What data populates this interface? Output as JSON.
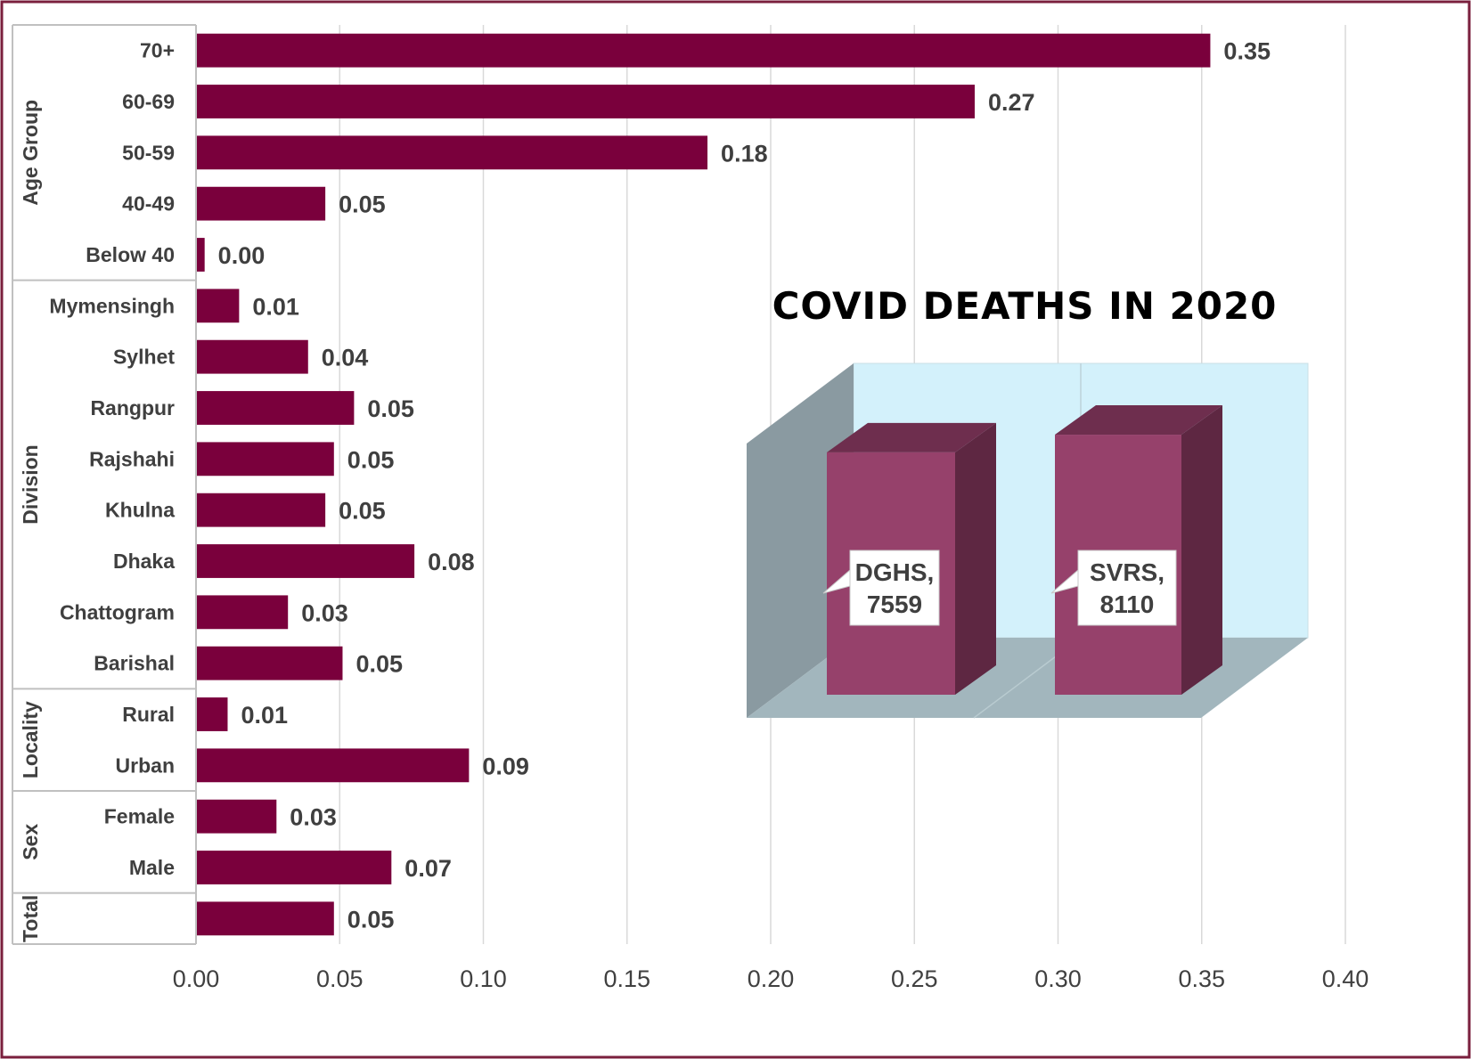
{
  "colors": {
    "bar": "#7a003c",
    "grid": "#d9d9d9",
    "frame": "#7a1f3d",
    "inset_back_wall": "#d3f1fb",
    "inset_side_wall": "#8a9aa1",
    "inset_floor": "#a2b6bd",
    "inset_box_front": "#96416b",
    "inset_box_top": "#6e2e4e",
    "inset_box_side": "#5e2742"
  },
  "chart_data": [
    {
      "type": "bar",
      "orientation": "horizontal",
      "xlim": [
        0,
        0.4
      ],
      "xticks": [
        "0.00",
        "0.05",
        "0.10",
        "0.15",
        "0.20",
        "0.25",
        "0.30",
        "0.35",
        "0.40"
      ],
      "grid": "vertical",
      "groups": [
        {
          "name": "Age Group",
          "categories": [
            "70+",
            "60-69",
            "50-59",
            "40-49",
            "Below 40"
          ],
          "values": [
            0.353,
            0.271,
            0.178,
            0.045,
            0.003
          ],
          "labels": [
            "0.35",
            "0.27",
            "0.18",
            "0.05",
            "0.00"
          ]
        },
        {
          "name": "Division",
          "categories": [
            "Mymensingh",
            "Sylhet",
            "Rangpur",
            "Rajshahi",
            "Khulna",
            "Dhaka",
            "Chattogram",
            "Barishal"
          ],
          "values": [
            0.015,
            0.039,
            0.055,
            0.048,
            0.045,
            0.076,
            0.032,
            0.051
          ],
          "labels": [
            "0.01",
            "0.04",
            "0.05",
            "0.05",
            "0.05",
            "0.08",
            "0.03",
            "0.05"
          ]
        },
        {
          "name": "Locality",
          "categories": [
            "Rural",
            "Urban"
          ],
          "values": [
            0.011,
            0.095
          ],
          "labels": [
            "0.01",
            "0.09"
          ]
        },
        {
          "name": "Sex",
          "categories": [
            "Female",
            "Male"
          ],
          "values": [
            0.028,
            0.068
          ],
          "labels": [
            "0.03",
            "0.07"
          ]
        },
        {
          "name": "Total",
          "categories": [
            ""
          ],
          "values": [
            0.048
          ],
          "labels": [
            "0.05"
          ]
        }
      ]
    },
    {
      "type": "bar",
      "style": "3d-column",
      "title": "COVID DEATHS IN 2020",
      "categories": [
        "DGHS",
        "SVRS"
      ],
      "values": [
        7559,
        8110
      ],
      "callouts": [
        [
          "DGHS,",
          "7559"
        ],
        [
          "SVRS,",
          "8110"
        ]
      ]
    }
  ]
}
